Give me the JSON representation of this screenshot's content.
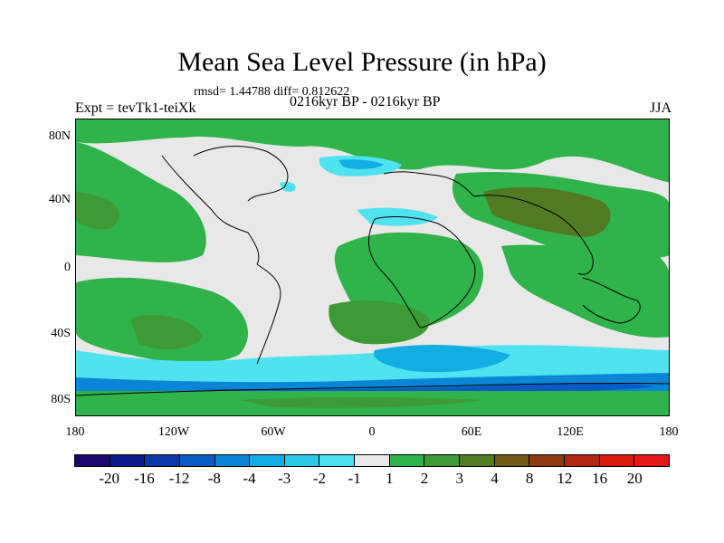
{
  "title": "Mean Sea Level Pressure (in hPa)",
  "stats": "rmsd= 1.44788 diff= 0.812622",
  "left_label": "Expt = tevTk1-teiXk",
  "center_label": "0216kyr BP - 0216kyr BP",
  "right_label": "JJA",
  "lat_ticks": [
    "80N",
    "40N",
    "0",
    "40S",
    "80S"
  ],
  "lon_ticks": [
    "180",
    "120W",
    "60W",
    "0",
    "60E",
    "120E",
    "180"
  ],
  "colorbar": {
    "labels": [
      "-20",
      "-16",
      "-12",
      "-8",
      "-4",
      "-3",
      "-2",
      "-1",
      "1",
      "2",
      "3",
      "4",
      "8",
      "12",
      "16",
      "20"
    ],
    "colors": [
      "#1b0a6b",
      "#0e1d8c",
      "#0b3aa8",
      "#0a5cc4",
      "#0b86d6",
      "#12aee2",
      "#2ec9e8",
      "#4fe3f0",
      "#e8e8e8",
      "#2fb34a",
      "#3d9a34",
      "#527a22",
      "#6e5a16",
      "#8f3b12",
      "#b32612",
      "#d81b0c",
      "#e41a1a"
    ]
  },
  "legend_colors": {
    "ocean_base": "#e8e8e8",
    "green": "#2fb34a",
    "dark_green": "#3d9a34",
    "olive": "#527a22",
    "cyan": "#2ec9e8",
    "light_cyan": "#4fe3f0",
    "blue": "#12aee2",
    "deep_blue": "#0b86d6",
    "navy": "#0a5cc4"
  }
}
